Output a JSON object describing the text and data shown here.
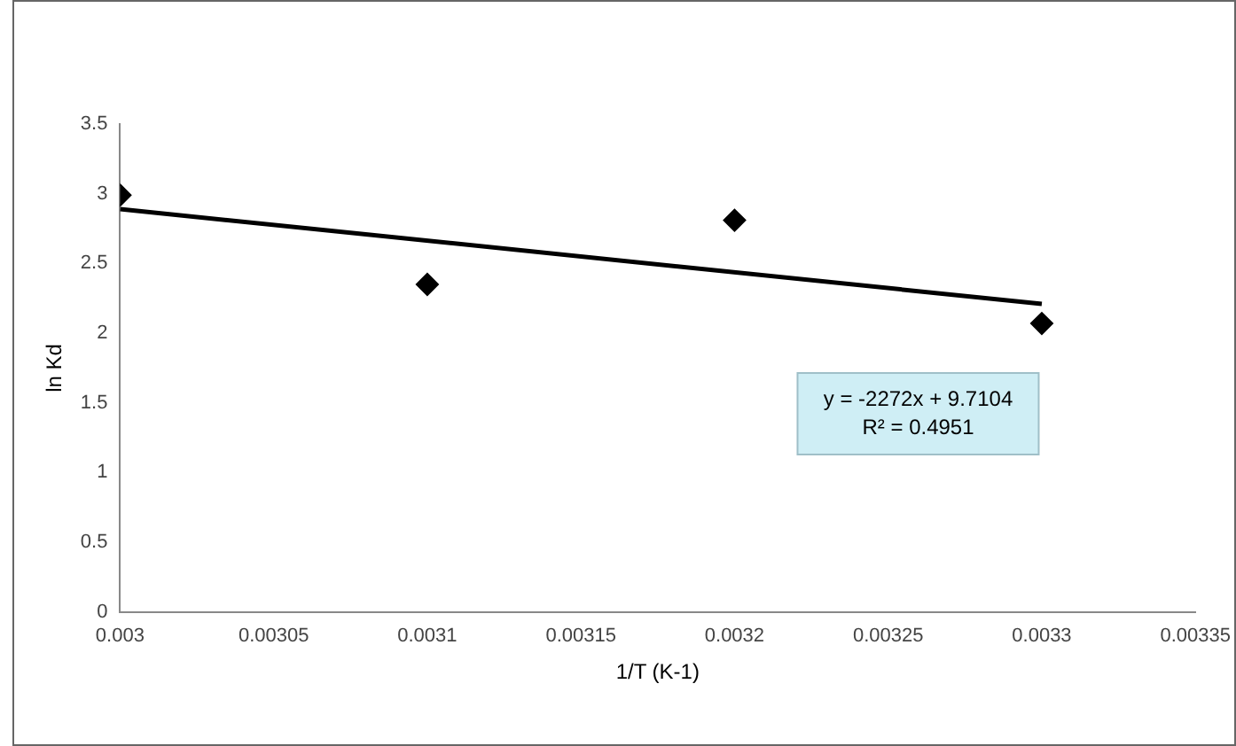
{
  "chart_data": {
    "type": "scatter",
    "xlabel": "1/T (K-1)",
    "ylabel": "ln Kd",
    "series": [
      {
        "color": "#000000",
        "x": [
          0.003,
          0.0031,
          0.0032,
          0.0033
        ],
        "values": [
          2.99,
          2.35,
          2.81,
          2.07
        ]
      },
      {
        "type": "line",
        "marker": "none",
        "color": "#000000",
        "x": [
          0.003,
          0.0033
        ],
        "values": [
          2.89,
          2.21
        ]
      }
    ],
    "xlim": [
      0.003,
      0.00335
    ],
    "xticks": [
      0.003,
      0.00305,
      0.0031,
      0.00315,
      0.0032,
      0.00325,
      0.0033,
      0.00335
    ],
    "ylim": [
      0,
      3.5
    ],
    "yticks": [
      0,
      0.5,
      1,
      1.5,
      2,
      2.5,
      3,
      3.5
    ],
    "annotations": [
      "y = -2272x + 9.7104",
      "R² = 0.4951"
    ],
    "legend": false,
    "grid": false,
    "marker": "diamond"
  }
}
